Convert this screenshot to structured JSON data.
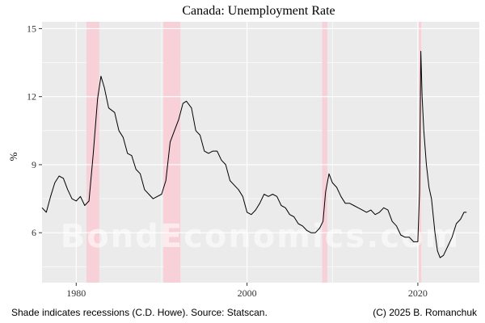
{
  "chart_data": {
    "type": "line",
    "title": "Canada: Unemployment Rate",
    "xlabel": "",
    "ylabel": "%",
    "xlim": [
      1976.0,
      2027.2
    ],
    "ylim": [
      3.8,
      15.3
    ],
    "x_ticks": [
      1980,
      2000,
      2020
    ],
    "y_ticks": [
      6,
      9,
      12,
      15
    ],
    "grid": true,
    "recessions": [
      {
        "start": 1981.2,
        "end": 1982.7
      },
      {
        "start": 1990.2,
        "end": 1992.2
      },
      {
        "start": 2008.8,
        "end": 2009.4
      },
      {
        "start": 2020.1,
        "end": 2020.4
      }
    ],
    "series": [
      {
        "line_color": "#000000",
        "x": [
          1976.0,
          1976.5,
          1977.0,
          1977.5,
          1978.0,
          1978.5,
          1979.0,
          1979.5,
          1980.0,
          1980.5,
          1981.0,
          1981.5,
          1982.0,
          1982.5,
          1982.9,
          1983.3,
          1983.8,
          1984.5,
          1985.0,
          1985.5,
          1986.0,
          1986.5,
          1987.0,
          1987.5,
          1988.0,
          1988.5,
          1989.0,
          1989.5,
          1990.0,
          1990.5,
          1991.0,
          1991.5,
          1992.0,
          1992.5,
          1992.9,
          1993.5,
          1994.0,
          1994.5,
          1995.0,
          1995.5,
          1996.0,
          1996.5,
          1997.0,
          1997.5,
          1998.0,
          1998.5,
          1999.0,
          1999.5,
          2000.0,
          2000.5,
          2001.0,
          2001.5,
          2002.0,
          2002.5,
          2003.0,
          2003.5,
          2004.0,
          2004.5,
          2005.0,
          2005.5,
          2006.0,
          2006.5,
          2007.0,
          2007.5,
          2008.0,
          2008.5,
          2008.9,
          2009.2,
          2009.6,
          2010.0,
          2010.5,
          2011.0,
          2011.5,
          2012.0,
          2012.5,
          2013.0,
          2013.5,
          2014.0,
          2014.5,
          2015.0,
          2015.5,
          2016.0,
          2016.5,
          2017.0,
          2017.5,
          2018.0,
          2018.5,
          2019.0,
          2019.5,
          2020.0,
          2020.2,
          2020.35,
          2020.5,
          2020.7,
          2021.0,
          2021.3,
          2021.6,
          2022.0,
          2022.3,
          2022.6,
          2023.0,
          2023.5,
          2024.0,
          2024.5,
          2025.0,
          2025.4,
          2025.7
        ],
        "y": [
          7.1,
          6.9,
          7.6,
          8.2,
          8.5,
          8.4,
          7.9,
          7.5,
          7.4,
          7.6,
          7.2,
          7.4,
          9.5,
          11.9,
          12.9,
          12.4,
          11.5,
          11.3,
          10.5,
          10.2,
          9.5,
          9.4,
          8.8,
          8.6,
          7.9,
          7.7,
          7.5,
          7.6,
          7.7,
          8.3,
          10.0,
          10.5,
          11.0,
          11.7,
          11.8,
          11.5,
          10.5,
          10.3,
          9.6,
          9.5,
          9.6,
          9.6,
          9.2,
          9.0,
          8.3,
          8.1,
          7.9,
          7.6,
          6.9,
          6.8,
          7.0,
          7.3,
          7.7,
          7.6,
          7.7,
          7.6,
          7.2,
          7.1,
          6.8,
          6.7,
          6.4,
          6.3,
          6.1,
          6.0,
          6.0,
          6.2,
          6.5,
          7.8,
          8.6,
          8.2,
          8.0,
          7.6,
          7.3,
          7.3,
          7.2,
          7.1,
          7.0,
          6.9,
          7.0,
          6.8,
          6.9,
          7.1,
          7.0,
          6.5,
          6.3,
          5.9,
          5.8,
          5.8,
          5.6,
          5.6,
          7.8,
          14.0,
          12.0,
          10.5,
          9.0,
          8.0,
          7.5,
          6.0,
          5.2,
          4.9,
          5.0,
          5.4,
          5.8,
          6.4,
          6.6,
          6.9,
          6.9
        ]
      }
    ]
  },
  "watermark": "BondEconomics.com",
  "footer": {
    "left": "Shade indicates recessions (C.D. Howe). Source: Statscan.",
    "right": "(C) 2025 B. Romanchuk"
  },
  "colors": {
    "panel_bg": "#ebebeb",
    "grid": "#ffffff",
    "recession": "#f8d0d8",
    "line": "#000000"
  }
}
